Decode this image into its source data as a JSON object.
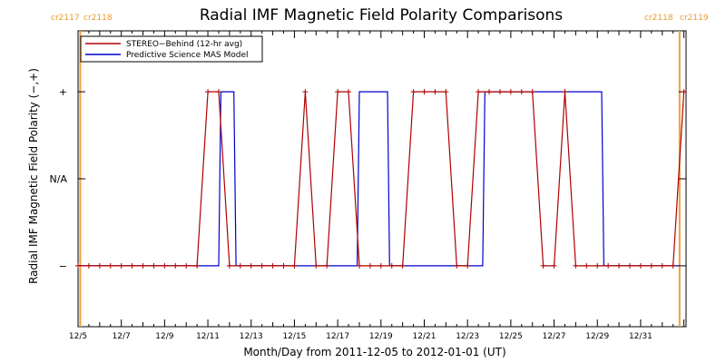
{
  "chart_data": {
    "type": "line",
    "title": "Radial IMF Magnetic Field Polarity Comparisons",
    "xlabel": "Month/Day from 2011-12-05 to 2012-01-01 (UT)",
    "ylabel": "Radial IMF Magnetic Field Polarity (−,+)",
    "x_tick_labels": [
      "12/5",
      "12/7",
      "12/9",
      "12/11",
      "12/13",
      "12/15",
      "12/17",
      "12/19",
      "12/21",
      "12/23",
      "12/25",
      "12/27",
      "12/29",
      "12/31"
    ],
    "y_tick_labels": [
      "−",
      "N/A",
      "+"
    ],
    "carrington_labels": {
      "left_before": "cr2117",
      "left_after": "cr2118",
      "right_before": "cr2118",
      "right_after": "cr2119"
    },
    "carrington_boundaries_day": [
      5.1,
      32.8
    ],
    "xlim_day": [
      5,
      33.1
    ],
    "ylim_level": [
      -1.7,
      1.7
    ],
    "colors": {
      "stereo": "#b00000",
      "model": "#0000cc",
      "carrington": "#f0a040"
    },
    "series": [
      {
        "name": "STEREO−Behind (12-hr avg)",
        "x": [
          5.0,
          5.5,
          6.0,
          6.5,
          7.0,
          7.5,
          8.0,
          8.5,
          9.0,
          9.5,
          10.0,
          10.5,
          11.0,
          11.5,
          12.0,
          12.5,
          13.0,
          13.5,
          14.0,
          14.5,
          15.0,
          15.5,
          16.0,
          16.5,
          17.0,
          17.5,
          18.0,
          18.5,
          19.0,
          19.5,
          20.0,
          20.5,
          21.0,
          21.5,
          22.0,
          22.5,
          23.0,
          23.5,
          24.0,
          24.5,
          25.0,
          25.5,
          26.0,
          26.5,
          27.0,
          27.5,
          28.0,
          28.5,
          29.0,
          29.5,
          30.0,
          30.5,
          31.0,
          31.5,
          32.0,
          32.5,
          33.0
        ],
        "y": [
          -1,
          -1,
          -1,
          -1,
          -1,
          -1,
          -1,
          -1,
          -1,
          -1,
          -1,
          -1,
          1,
          1,
          -1,
          -1,
          -1,
          -1,
          -1,
          -1,
          -1,
          1,
          -1,
          -1,
          1,
          1,
          -1,
          -1,
          -1,
          -1,
          -1,
          1,
          1,
          1,
          1,
          -1,
          -1,
          1,
          1,
          1,
          1,
          1,
          1,
          -1,
          -1,
          1,
          -1,
          -1,
          -1,
          -1,
          -1,
          -1,
          -1,
          -1,
          -1,
          -1,
          1
        ]
      },
      {
        "name": "Predictive Science MAS Model",
        "x": [
          5.0,
          11.5,
          11.6,
          12.2,
          12.3,
          17.9,
          18.0,
          19.3,
          19.4,
          23.7,
          23.8,
          29.2,
          29.3,
          32.8
        ],
        "y": [
          -1,
          -1,
          1,
          1,
          -1,
          -1,
          1,
          1,
          -1,
          -1,
          1,
          1,
          -1,
          -1
        ]
      }
    ]
  }
}
